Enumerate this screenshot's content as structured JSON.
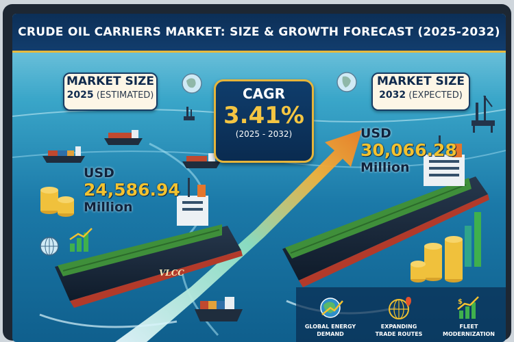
{
  "title": "CRUDE OIL CARRIERS MARKET: SIZE & GROWTH FORECAST (2025-2032)",
  "left_callout": {
    "heading": "MARKET SIZE",
    "year": "2025",
    "qualifier": "(ESTIMATED)"
  },
  "right_callout": {
    "heading": "MARKET SIZE",
    "year": "2032",
    "qualifier": "(EXPECTED)"
  },
  "cagr": {
    "label": "CAGR",
    "value": "3.41%",
    "period": "(2025 - 2032)"
  },
  "value_2025": {
    "currency": "USD",
    "amount": "24,586.94",
    "unit": "Million"
  },
  "value_2032": {
    "currency": "USD",
    "amount": "30,066.28",
    "unit": "Million"
  },
  "ship_label": "VLCC",
  "drivers": [
    {
      "line1": "GLOBAL ENERGY",
      "line2": "DEMAND",
      "icon": "globe-growth-icon"
    },
    {
      "line1": "EXPANDING",
      "line2": "TRADE ROUTES",
      "icon": "globe-route-icon"
    },
    {
      "line1": "FLEET",
      "line2": "MODERNIZATION",
      "icon": "bar-growth-icon"
    }
  ],
  "colors": {
    "navy": "#0c2f57",
    "gold": "#f2c230",
    "sea": "#1b79a8",
    "hull_red": "#b23a2a",
    "deck_green": "#3f8f3a",
    "arrow_orange": "#f08a24"
  }
}
